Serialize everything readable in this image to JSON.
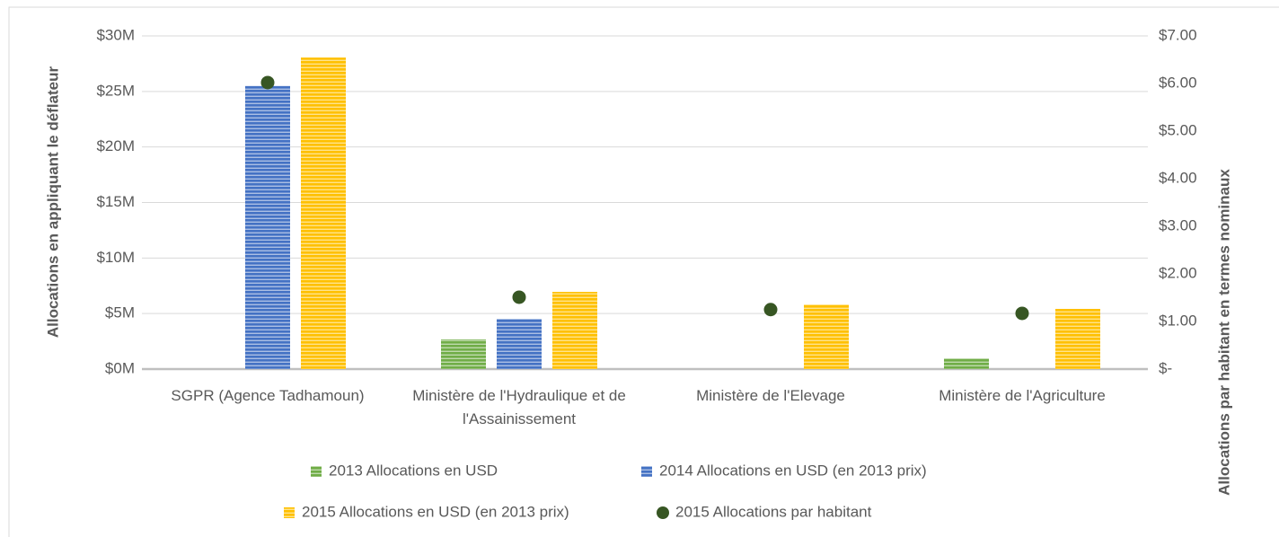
{
  "chart_data": {
    "type": "bar",
    "categories": [
      "SGPR (Agence Tadhamoun)",
      "Ministère de l'Hydraulique et de l'Assainissement",
      "Ministère de l'Elevage",
      "Ministère de l'Agriculture"
    ],
    "series": [
      {
        "name": "2013 Allocations en USD",
        "color": "#70ad47",
        "values": [
          null,
          2.67,
          null,
          0.97
        ]
      },
      {
        "name": "2014 Allocations en USD (en 2013 prix)",
        "color": "#4472c4",
        "values": [
          25.5,
          4.53,
          null,
          null
        ]
      },
      {
        "name": "2015 Allocations en USD (en 2013 prix)",
        "color": "#ffc000",
        "values": [
          28.05,
          6.95,
          5.82,
          5.42
        ]
      },
      {
        "name": "2015 Allocations par habitant",
        "color": "#375623",
        "type": "scatter",
        "axis": "y2",
        "values": [
          6.02,
          1.51,
          1.25,
          1.17
        ]
      }
    ],
    "ylabel": "Allocations en appliquant le déflateur",
    "y2label": "Allocations par habitant en termes nominaux",
    "ylim": [
      0,
      30
    ],
    "yticks": [
      {
        "value": 0,
        "label": "$0M"
      },
      {
        "value": 5,
        "label": "$5M"
      },
      {
        "value": 10,
        "label": "$10M"
      },
      {
        "value": 15,
        "label": "$15M"
      },
      {
        "value": 20,
        "label": "$20M"
      },
      {
        "value": 25,
        "label": "$25M"
      },
      {
        "value": 30,
        "label": "$30M"
      }
    ],
    "y2lim": [
      0,
      7
    ],
    "y2ticks": [
      {
        "value": 0,
        "label": "$-"
      },
      {
        "value": 1,
        "label": "$1.00"
      },
      {
        "value": 2,
        "label": "$2.00"
      },
      {
        "value": 3,
        "label": "$3.00"
      },
      {
        "value": 4,
        "label": "$4.00"
      },
      {
        "value": 5,
        "label": "$5.00"
      },
      {
        "value": 6,
        "label": "$6.00"
      },
      {
        "value": 7,
        "label": "$7.00"
      }
    ],
    "grid": true
  }
}
